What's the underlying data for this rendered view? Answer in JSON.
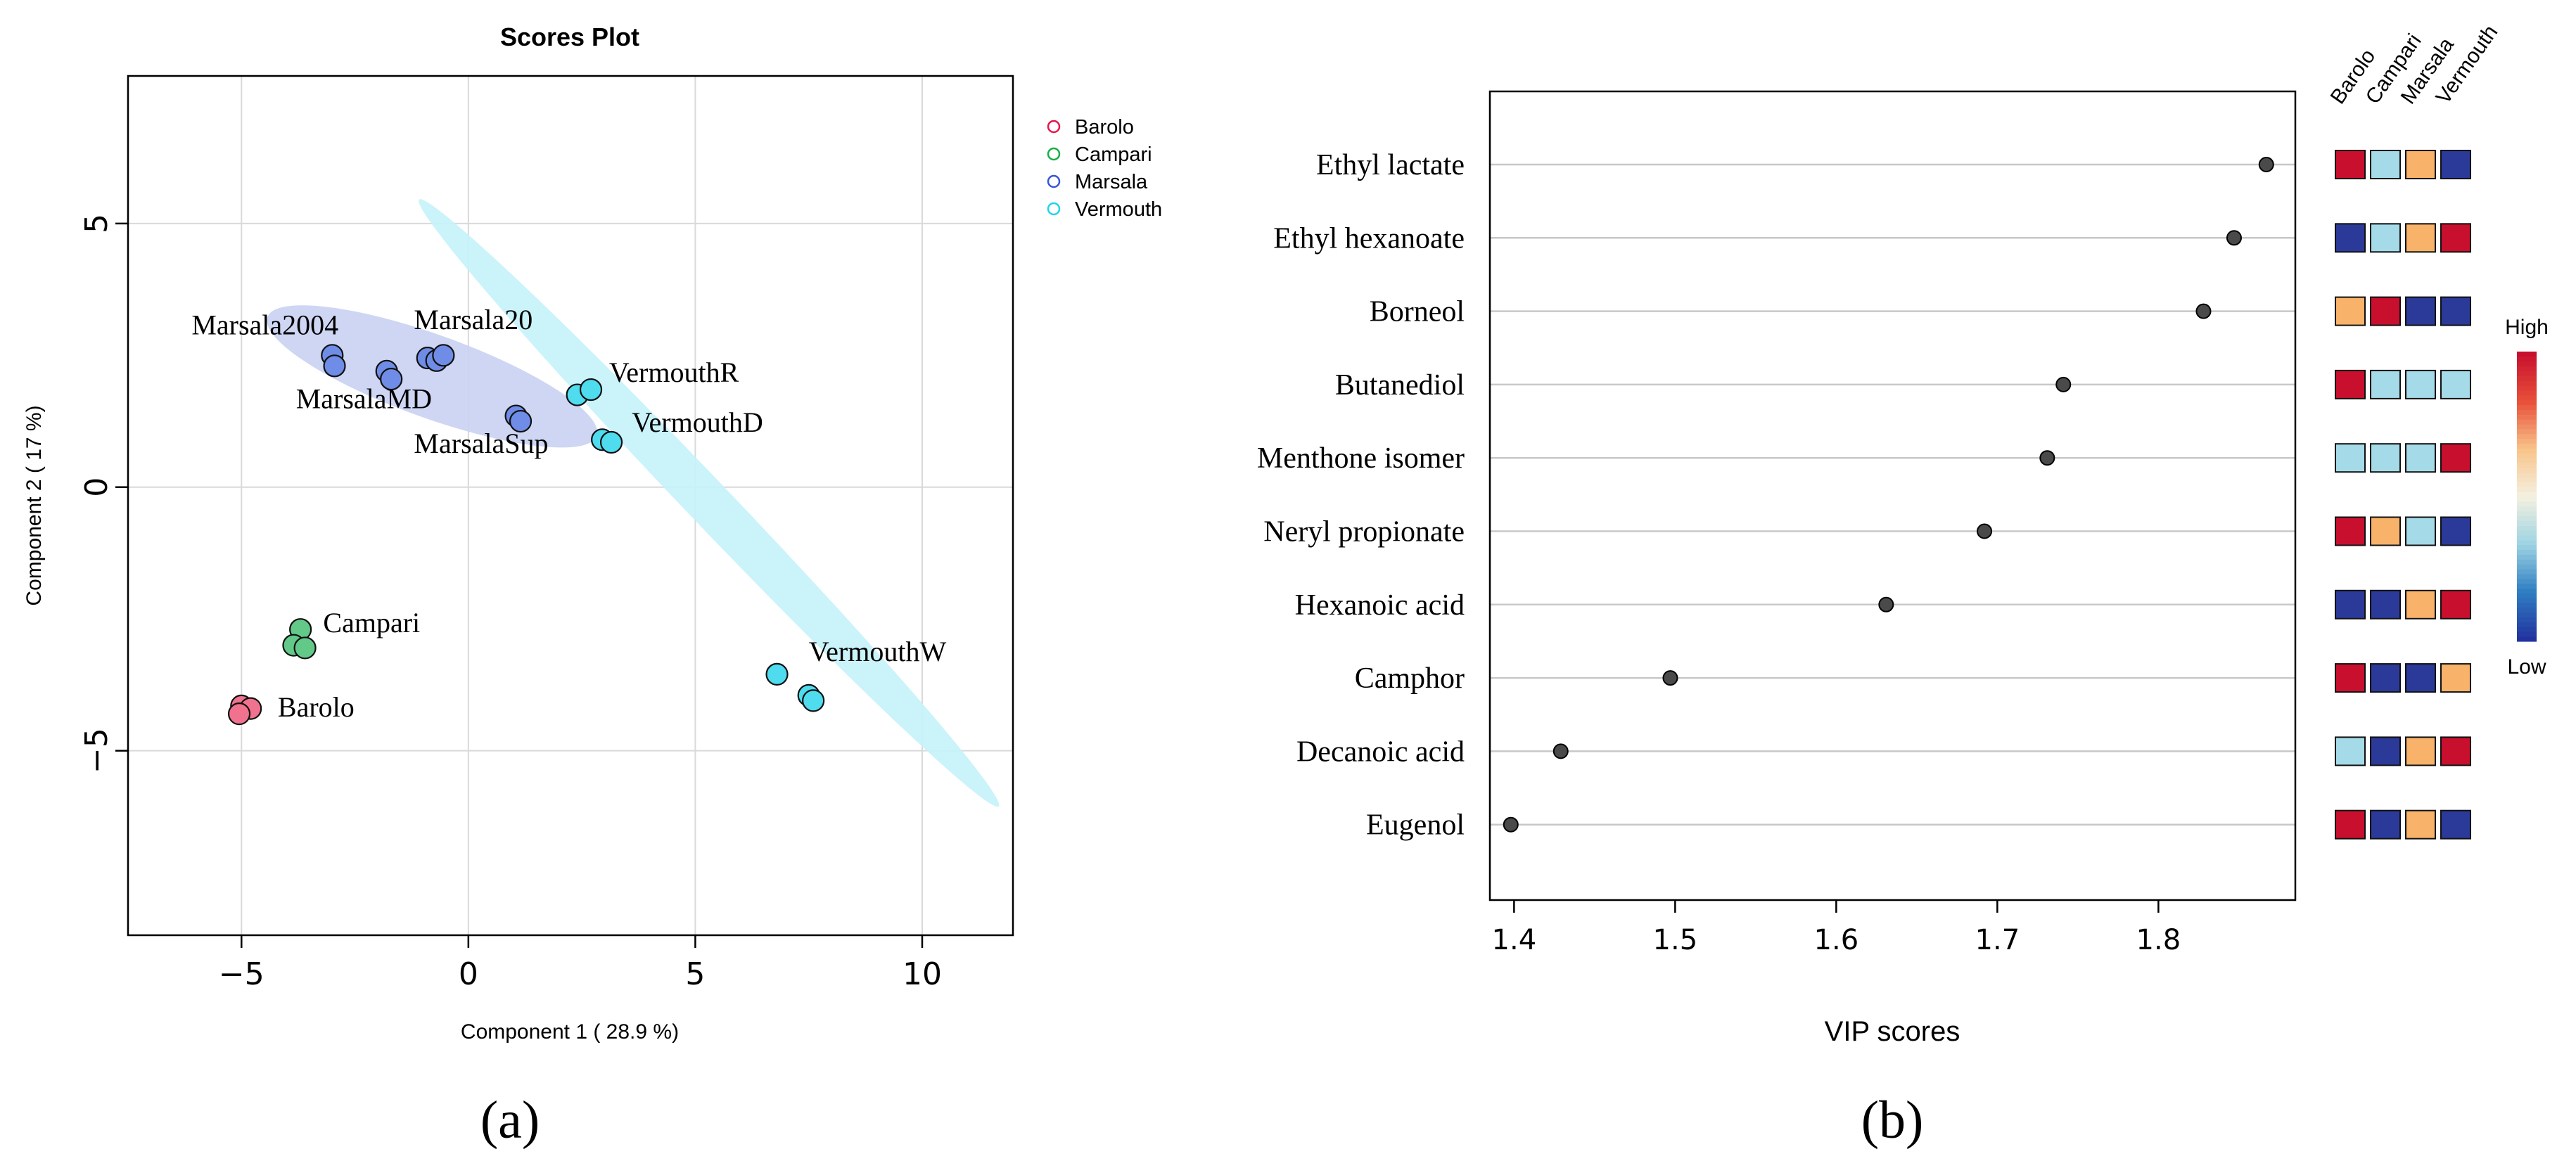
{
  "chart_data": [
    {
      "type": "scatter",
      "panel_label": "(a)",
      "title": "Scores Plot",
      "xlabel": "Component 1 ( 28.9 %)",
      "ylabel": "Component 2 ( 17 %)",
      "xlim": [
        -7.5,
        12
      ],
      "ylim": [
        -8.5,
        7.8
      ],
      "xticks": [
        -5,
        0,
        5,
        10
      ],
      "yticks": [
        -5,
        0,
        5
      ],
      "grid": true,
      "legend_position": "top-right, outside plot",
      "legend": [
        {
          "name": "Barolo",
          "color": "#e8174a"
        },
        {
          "name": "Campari",
          "color": "#1aad48"
        },
        {
          "name": "Marsala",
          "color": "#3757d8"
        },
        {
          "name": "Vermouth",
          "color": "#22d3ee"
        }
      ],
      "fill_colors": {
        "Barolo": "#f0728e",
        "Campari": "#63c989",
        "Marsala": "#6f8ce6",
        "Vermouth": "#4fdcef"
      },
      "ellipses": [
        {
          "group": "Marsala",
          "cx": -0.8,
          "cy": 2.1,
          "rx": 3.8,
          "ry": 0.8,
          "angle_deg": -17,
          "color": "#c9d2f3"
        },
        {
          "group": "Vermouth",
          "cx": 5.3,
          "cy": -0.3,
          "rx": 8.6,
          "ry": 0.45,
          "angle_deg": -42,
          "color": "#c5f2fa"
        }
      ],
      "points": [
        {
          "group": "Barolo",
          "x": -5.0,
          "y": -4.15
        },
        {
          "group": "Barolo",
          "x": -4.8,
          "y": -4.2
        },
        {
          "group": "Barolo",
          "x": -5.05,
          "y": -4.3
        },
        {
          "group": "Campari",
          "x": -3.7,
          "y": -2.7
        },
        {
          "group": "Campari",
          "x": -3.85,
          "y": -3.0
        },
        {
          "group": "Campari",
          "x": -3.6,
          "y": -3.05
        },
        {
          "group": "Marsala",
          "x": -3.0,
          "y": 2.5
        },
        {
          "group": "Marsala",
          "x": -2.95,
          "y": 2.3
        },
        {
          "group": "Marsala",
          "x": -1.8,
          "y": 2.2
        },
        {
          "group": "Marsala",
          "x": -1.7,
          "y": 2.05
        },
        {
          "group": "Marsala",
          "x": -0.9,
          "y": 2.45
        },
        {
          "group": "Marsala",
          "x": -0.7,
          "y": 2.4
        },
        {
          "group": "Marsala",
          "x": -0.55,
          "y": 2.5
        },
        {
          "group": "Marsala",
          "x": 1.05,
          "y": 1.35
        },
        {
          "group": "Marsala",
          "x": 1.15,
          "y": 1.25
        },
        {
          "group": "Vermouth",
          "x": 2.4,
          "y": 1.75
        },
        {
          "group": "Vermouth",
          "x": 2.7,
          "y": 1.85
        },
        {
          "group": "Vermouth",
          "x": 2.95,
          "y": 0.9
        },
        {
          "group": "Vermouth",
          "x": 3.15,
          "y": 0.85
        },
        {
          "group": "Vermouth",
          "x": 6.8,
          "y": -3.55
        },
        {
          "group": "Vermouth",
          "x": 7.5,
          "y": -3.95
        },
        {
          "group": "Vermouth",
          "x": 7.6,
          "y": -4.05
        }
      ],
      "annotations": [
        {
          "text": "Marsala2004",
          "x": -6.1,
          "y": 2.9
        },
        {
          "text": "Marsala20",
          "x": -1.2,
          "y": 3.0
        },
        {
          "text": "MarsalaMD",
          "x": -3.8,
          "y": 1.5
        },
        {
          "text": "VermouthR",
          "x": 3.1,
          "y": 2.0
        },
        {
          "text": "VermouthD",
          "x": 3.6,
          "y": 1.05
        },
        {
          "text": "MarsalaSup",
          "x": -1.2,
          "y": 0.65
        },
        {
          "text": "Campari",
          "x": -3.2,
          "y": -2.75
        },
        {
          "text": "Barolo",
          "x": -4.2,
          "y": -4.35
        },
        {
          "text": "VermouthW",
          "x": 7.5,
          "y": -3.3
        }
      ]
    },
    {
      "type": "dot",
      "panel_label": "(b)",
      "xlabel": "VIP scores",
      "xlim": [
        1.385,
        1.885
      ],
      "xticks": [
        1.4,
        1.5,
        1.6,
        1.7,
        1.8
      ],
      "features": [
        "Ethyl lactate",
        "Ethyl hexanoate",
        "Borneol",
        "Butanediol",
        "Menthone isomer",
        "Neryl propionate",
        "Hexanoic acid",
        "Camphor",
        "Decanoic acid",
        "Eugenol"
      ],
      "values": [
        1.867,
        1.847,
        1.828,
        1.741,
        1.731,
        1.692,
        1.631,
        1.497,
        1.429,
        1.398
      ],
      "heatmap_columns": [
        "Barolo",
        "Campari",
        "Marsala",
        "Vermouth"
      ],
      "heatmap_levels": [
        [
          4,
          2,
          3,
          1
        ],
        [
          1,
          2,
          3,
          4
        ],
        [
          3,
          4,
          1,
          1
        ],
        [
          4,
          2,
          2,
          2
        ],
        [
          2,
          2,
          2,
          4
        ],
        [
          4,
          3,
          2,
          1
        ],
        [
          1,
          1,
          3,
          4
        ],
        [
          4,
          1,
          1,
          3
        ],
        [
          2,
          1,
          3,
          4
        ],
        [
          4,
          1,
          3,
          1
        ]
      ],
      "level_colors": {
        "1": "#2b3a99",
        "2": "#a5dbe8",
        "3": "#f8b26a",
        "4": "#c8102e"
      },
      "colorbar": {
        "high_label": "High",
        "low_label": "Low",
        "colors": [
          "#2233a0",
          "#2f7ec2",
          "#9dd3e3",
          "#f4f0e0",
          "#f8c48a",
          "#e8503a",
          "#c8102e"
        ]
      }
    }
  ]
}
